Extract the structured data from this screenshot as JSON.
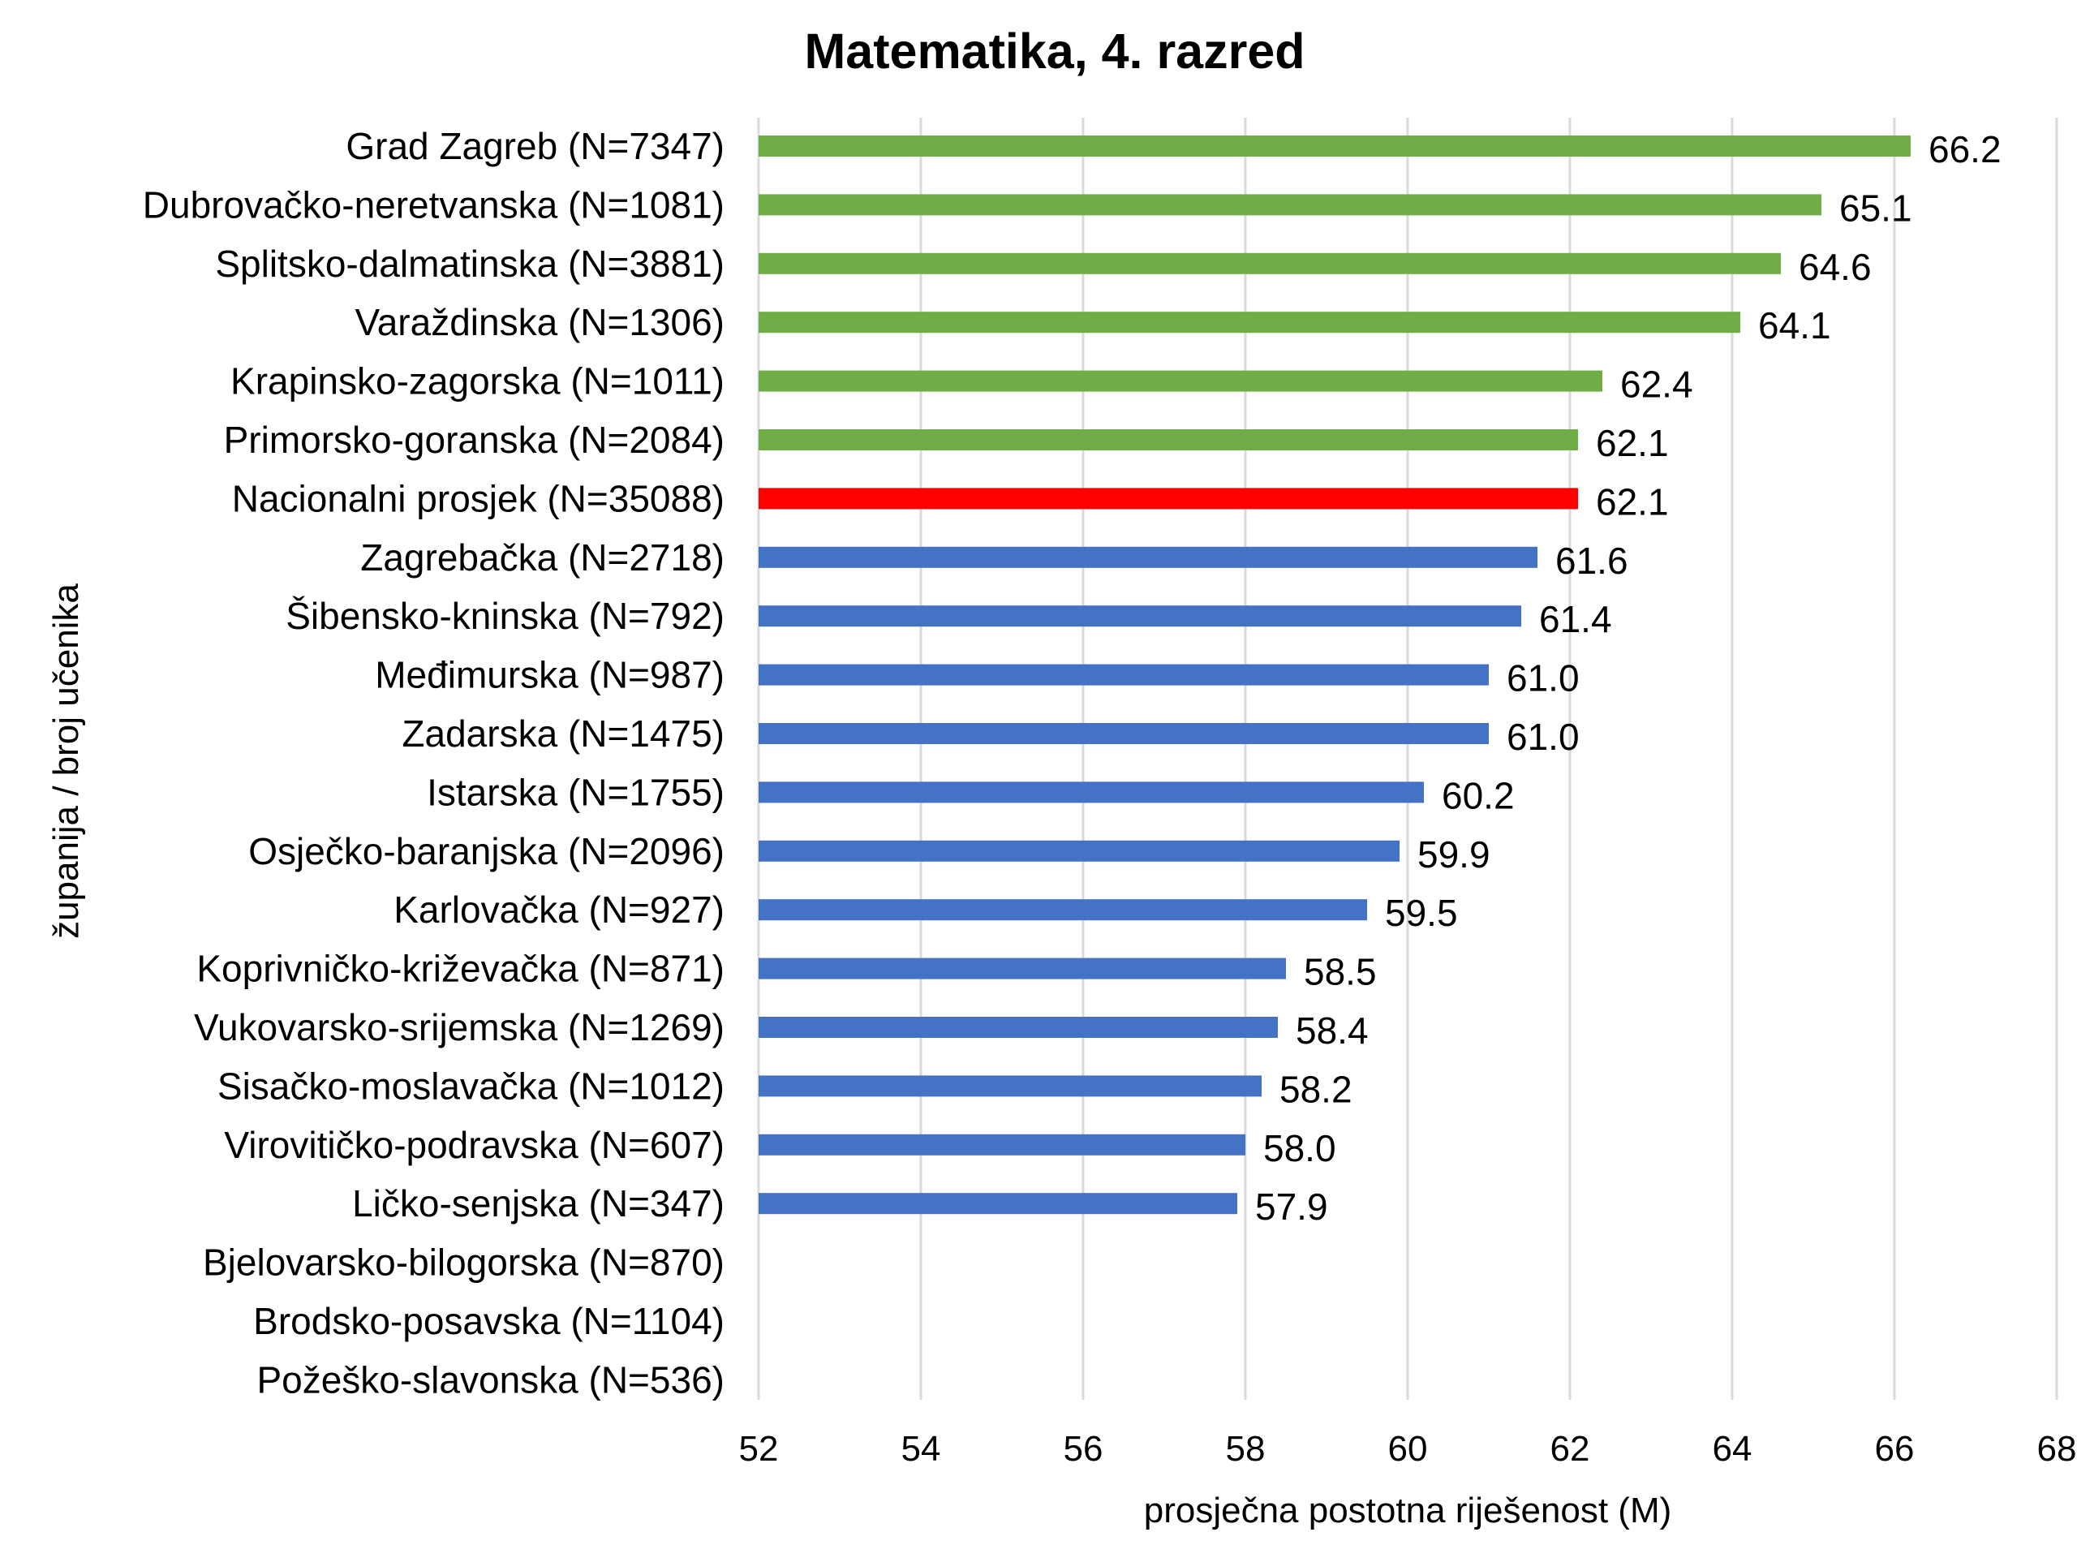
{
  "chart_data": {
    "type": "bar",
    "orientation": "horizontal",
    "title": "Matematika, 4. razred",
    "xlabel": "prosječna postotna riješenost (M)",
    "ylabel": "županija / broj učenika",
    "xlim": [
      52,
      68
    ],
    "xticks": [
      "52",
      "54",
      "56",
      "58",
      "60",
      "62",
      "64",
      "66",
      "68"
    ],
    "grid": true,
    "categories": [
      "Grad Zagreb (N=7347)",
      "Dubrovačko-neretvanska (N=1081)",
      "Splitsko-dalmatinska (N=3881)",
      "Varaždinska (N=1306)",
      "Krapinsko-zagorska (N=1011)",
      "Primorsko-goranska (N=2084)",
      "Nacionalni prosjek  (N=35088)",
      "Zagrebačka (N=2718)",
      "Šibensko-kninska (N=792)",
      "Međimurska (N=987)",
      "Zadarska (N=1475)",
      "Istarska (N=1755)",
      "Osječko-baranjska (N=2096)",
      "Karlovačka (N=927)",
      "Koprivničko-križevačka (N=871)",
      "Vukovarsko-srijemska (N=1269)",
      "Sisačko-moslavačka (N=1012)",
      "Virovitičko-podravska (N=607)",
      "Ličko-senjska (N=347)",
      "Bjelovarsko-bilogorska (N=870)",
      "Brodsko-posavska (N=1104)",
      "Požeško-slavonska (N=536)"
    ],
    "values": [
      66.2,
      65.1,
      64.6,
      64.1,
      62.4,
      62.1,
      62.1,
      61.6,
      61.4,
      61.0,
      61.0,
      60.2,
      59.9,
      59.5,
      58.5,
      58.4,
      58.2,
      58.0,
      57.9,
      null,
      null,
      null
    ],
    "value_labels": [
      "66.2",
      "65.1",
      "64.6",
      "64.1",
      "62.4",
      "62.1",
      "62.1",
      "61.6",
      "61.4",
      "61.0",
      "61.0",
      "60.2",
      "59.9",
      "59.5",
      "58.5",
      "58.4",
      "58.2",
      "58.0",
      "57.9",
      "",
      "",
      ""
    ],
    "bar_colors": [
      "#70ad47",
      "#70ad47",
      "#70ad47",
      "#70ad47",
      "#70ad47",
      "#70ad47",
      "#ff0000",
      "#4472c4",
      "#4472c4",
      "#4472c4",
      "#4472c4",
      "#4472c4",
      "#4472c4",
      "#4472c4",
      "#4472c4",
      "#4472c4",
      "#4472c4",
      "#4472c4",
      "#4472c4",
      "#4472c4",
      "#4472c4",
      "#4472c4"
    ]
  }
}
